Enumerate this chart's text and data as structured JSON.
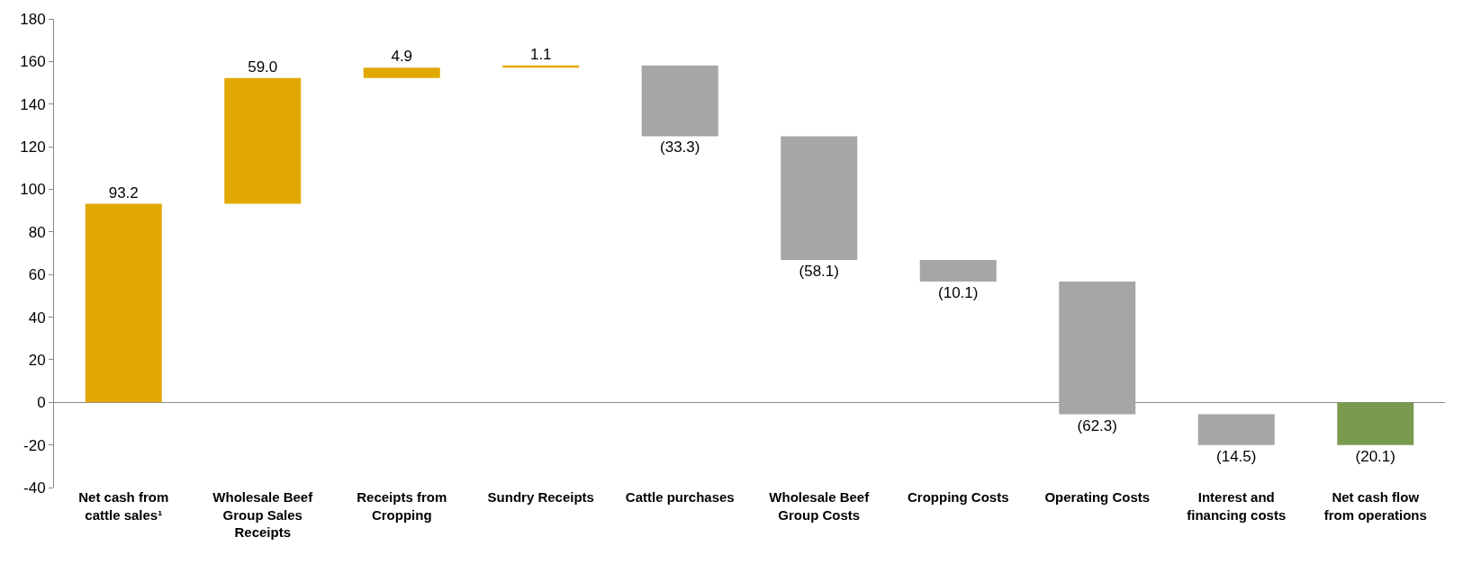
{
  "chart_data": {
    "type": "bar",
    "categories": [
      "Net cash from cattle sales¹",
      "Wholesale Beef Group Sales Receipts",
      "Receipts from Cropping",
      "Sundry Receipts",
      "Cattle purchases",
      "Wholesale Beef Group Costs",
      "Cropping Costs",
      "Operating Costs",
      "Interest and financing costs",
      "Net cash flow from operations"
    ],
    "values": [
      93.2,
      59.0,
      4.9,
      1.1,
      -33.3,
      -58.1,
      -10.1,
      -62.3,
      -14.5,
      -20.1
    ],
    "base": [
      0,
      93.2,
      152.2,
      157.1,
      158.2,
      124.9,
      66.8,
      56.7,
      -5.6,
      0
    ],
    "colors": [
      "#e0a800",
      "#e0a800",
      "#e0a800",
      "#e0a800",
      "#a6a6a6",
      "#a6a6a6",
      "#a6a6a6",
      "#a6a6a6",
      "#a6a6a6",
      "#7a9a50"
    ],
    "value_labels": [
      "93.2",
      "59.0",
      "4.9",
      "1.1",
      "(33.3)",
      "(58.1)",
      "(10.1)",
      "(62.3)",
      "(14.5)",
      "(20.1)"
    ],
    "ylim": [
      -40,
      180
    ],
    "yticks": [
      -40,
      -20,
      0,
      20,
      40,
      60,
      80,
      100,
      120,
      140,
      160,
      180
    ]
  }
}
